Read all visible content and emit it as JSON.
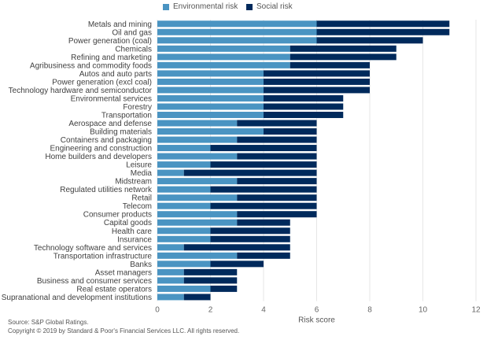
{
  "chart_data": {
    "type": "bar",
    "orientation": "horizontal",
    "stacked": true,
    "title": "",
    "xlabel": "Risk score",
    "ylabel": "",
    "xlim": [
      0,
      12
    ],
    "xticks": [
      0,
      2,
      4,
      6,
      8,
      10,
      12
    ],
    "grid": true,
    "legend_position": "top-center",
    "categories": [
      "Metals and mining",
      "Oil and gas",
      "Power generation (coal)",
      "Chemicals",
      "Refining and marketing",
      "Agribusiness and commodity foods",
      "Autos and auto parts",
      "Power generation (excl coal)",
      "Technology hardware and semiconductor",
      "Environmental services",
      "Forestry",
      "Transportation",
      "Aerospace and defense",
      "Building materials",
      "Containers and packaging",
      "Engineering and construction",
      "Home builders and developers",
      "Leisure",
      "Media",
      "Midstream",
      "Regulated utilities network",
      "Retail",
      "Telecom",
      "Consumer products",
      "Capital goods",
      "Health care",
      "Insurance",
      "Technology software and services",
      "Transportation infrastructure",
      "Banks",
      "Asset managers",
      "Business and consumer services",
      "Real estate operators",
      "Supranational and development institutions"
    ],
    "series": [
      {
        "name": "Environmental risk",
        "color": "#4a94c2",
        "values": [
          6,
          6,
          6,
          5,
          5,
          5,
          4,
          4,
          4,
          4,
          4,
          4,
          3,
          4,
          3,
          2,
          3,
          2,
          1,
          3,
          2,
          3,
          2,
          3,
          3,
          2,
          2,
          1,
          3,
          2,
          1,
          1,
          2,
          1
        ]
      },
      {
        "name": "Social risk",
        "color": "#002a5c",
        "values": [
          5,
          5,
          4,
          4,
          4,
          3,
          4,
          4,
          4,
          3,
          3,
          3,
          3,
          2,
          3,
          4,
          3,
          4,
          5,
          3,
          4,
          3,
          4,
          3,
          2,
          3,
          3,
          4,
          2,
          2,
          2,
          2,
          1,
          1
        ]
      }
    ]
  },
  "footer": {
    "source": "Source: S&P Global Ratings.",
    "copyright": "Copyright © 2019 by Standard & Poor's Financial Services LLC. All rights reserved."
  }
}
